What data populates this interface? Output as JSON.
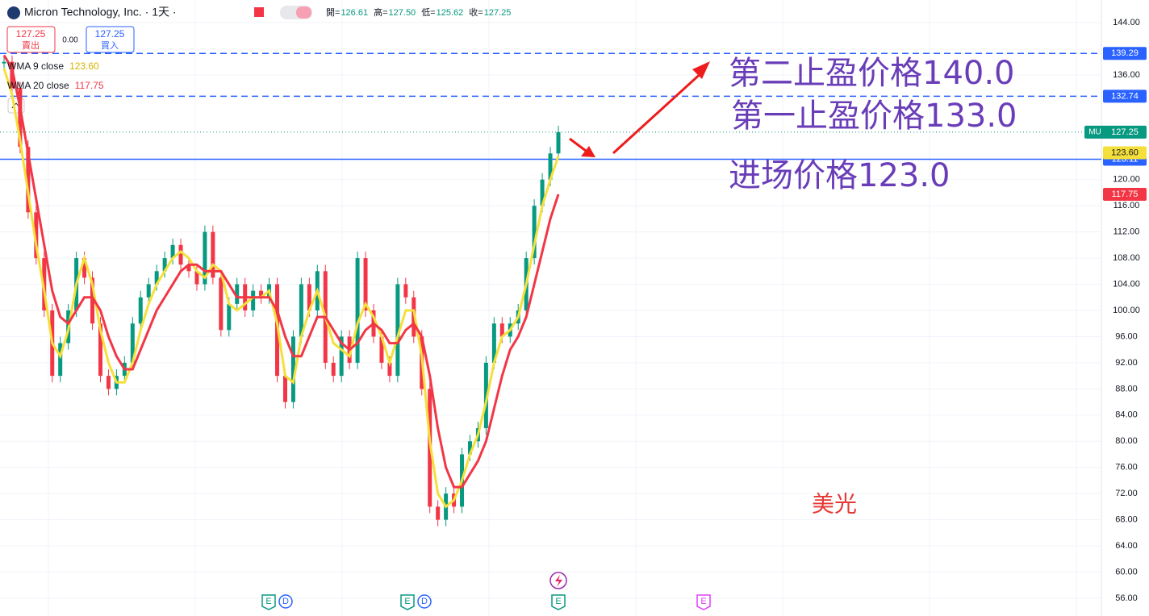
{
  "header": {
    "symbol_name": "Micron Technology, Inc. · 1天 ·",
    "ohlc": [
      {
        "label": "開=",
        "value": "126.61"
      },
      {
        "label": "高=",
        "value": "127.50"
      },
      {
        "label": "低=",
        "value": "125.62"
      },
      {
        "label": "收=",
        "value": "127.25"
      }
    ],
    "sell": {
      "price": "127.25",
      "label": "賣出"
    },
    "spread": "0.00",
    "buy": {
      "price": "127.25",
      "label": "買入"
    }
  },
  "chart_data": {
    "type": "candlestick",
    "symbol": "MU",
    "up_color": "#089981",
    "down_color": "#f23645",
    "categories": [
      null,
      null,
      null,
      null,
      null,
      null,
      null,
      null,
      null,
      null,
      null,
      null,
      null,
      null,
      null,
      null,
      null,
      null,
      null,
      null,
      null,
      null,
      null,
      null,
      null,
      null,
      null,
      null,
      null,
      null,
      null,
      null,
      null,
      null,
      null,
      null,
      null,
      null,
      null,
      null,
      null,
      null,
      null,
      null,
      null,
      null,
      null,
      null,
      null,
      null,
      null,
      null,
      null,
      null,
      null,
      null,
      null,
      null,
      null,
      null,
      null,
      null,
      null,
      null,
      null,
      null,
      null,
      null,
      null,
      null
    ],
    "close": [
      138,
      134,
      125,
      115,
      108,
      100,
      90,
      95,
      100,
      108,
      105,
      98,
      90,
      88,
      90,
      92,
      98,
      102,
      104,
      106,
      108,
      110,
      107,
      106,
      104,
      112,
      105,
      97,
      101,
      104,
      100,
      103,
      102,
      104,
      90,
      86,
      96,
      104,
      100,
      106,
      92,
      90,
      96,
      92,
      108,
      100,
      96,
      92,
      90,
      104,
      102,
      96,
      88,
      70,
      68,
      72,
      70,
      78,
      80,
      82,
      92,
      98,
      96,
      98,
      100,
      108,
      116,
      120,
      124,
      127.25
    ],
    "series": [
      {
        "name": "WMA 9 close",
        "color": "#f5e03b",
        "last_label": "123.60",
        "values": [
          137,
          133,
          126,
          118,
          110,
          103,
          95,
          93,
          97,
          104,
          108,
          104,
          97,
          92,
          89,
          89,
          92,
          97,
          101,
          104,
          106,
          108,
          109,
          108,
          106,
          105,
          107,
          106,
          101,
          100,
          101,
          102,
          102,
          103,
          98,
          90,
          89,
          96,
          100,
          103,
          99,
          95,
          94,
          93,
          98,
          101,
          99,
          96,
          92,
          96,
          100,
          100,
          93,
          80,
          72,
          70,
          71,
          74,
          78,
          81,
          86,
          92,
          96,
          97,
          99,
          104,
          110,
          116,
          120,
          123.6
        ]
      },
      {
        "name": "WMA 20 close",
        "color": "#f23645",
        "values": [
          139,
          137,
          131,
          124,
          117,
          110,
          103,
          99,
          98,
          100,
          102,
          102,
          100,
          96,
          93,
          91,
          91,
          94,
          97,
          100,
          102,
          104,
          106,
          107,
          107,
          106,
          106,
          106,
          104,
          102,
          102,
          102,
          102,
          102,
          100,
          96,
          93,
          93,
          96,
          99,
          99,
          97,
          95,
          94,
          95,
          97,
          98,
          97,
          95,
          95,
          97,
          98,
          96,
          90,
          82,
          76,
          73,
          73,
          75,
          77,
          80,
          85,
          90,
          94,
          96,
          99,
          104,
          109,
          114,
          117.75
        ]
      }
    ],
    "price_lines": [
      {
        "value": 139.29,
        "style": "dashed",
        "color": "#2962ff"
      },
      {
        "value": 132.74,
        "style": "dashed",
        "color": "#2962ff"
      },
      {
        "value": 123.11,
        "style": "solid",
        "color": "#2962ff"
      }
    ],
    "ylim": [
      56,
      144
    ],
    "yticks": [
      {
        "value": 56,
        "label": "56.00"
      },
      {
        "value": 60,
        "label": "60.00"
      },
      {
        "value": 64,
        "label": "64.00"
      },
      {
        "value": 68,
        "label": "68.00"
      },
      {
        "value": 72,
        "label": "72.00"
      },
      {
        "value": 76,
        "label": "76.00"
      },
      {
        "value": 80,
        "label": "80.00"
      },
      {
        "value": 84,
        "label": "84.00"
      },
      {
        "value": 88,
        "label": "88.00"
      },
      {
        "value": 92,
        "label": "92.00"
      },
      {
        "value": 96,
        "label": "96.00"
      },
      {
        "value": 100,
        "label": "100.00"
      },
      {
        "value": 104,
        "label": "104.00"
      },
      {
        "value": 108,
        "label": "108.00"
      },
      {
        "value": 112,
        "label": "112.00"
      },
      {
        "value": 116,
        "label": "116.00"
      },
      {
        "value": 120,
        "label": "120.00"
      },
      {
        "value": 136,
        "label": "136.00"
      },
      {
        "value": 144,
        "label": "144.00"
      }
    ],
    "grid": true,
    "annotations": [
      {
        "text": "第二止盈价格140.0",
        "color": "#6a3db8"
      },
      {
        "text": "第一止盈价格133.0",
        "color": "#6a3db8"
      },
      {
        "text": "进场价格123.0",
        "color": "#6a3db8"
      },
      {
        "text": "美光",
        "color": "#e53935"
      }
    ],
    "events": [
      {
        "label": "E",
        "color": "#089981"
      },
      {
        "label": "D",
        "color": "#2962ff"
      },
      {
        "label": "E",
        "color": "#089981"
      },
      {
        "label": "D",
        "color": "#2962ff"
      },
      {
        "label": "E",
        "color": "#089981"
      },
      {
        "label": "E",
        "color": "#e040fb"
      }
    ]
  }
}
